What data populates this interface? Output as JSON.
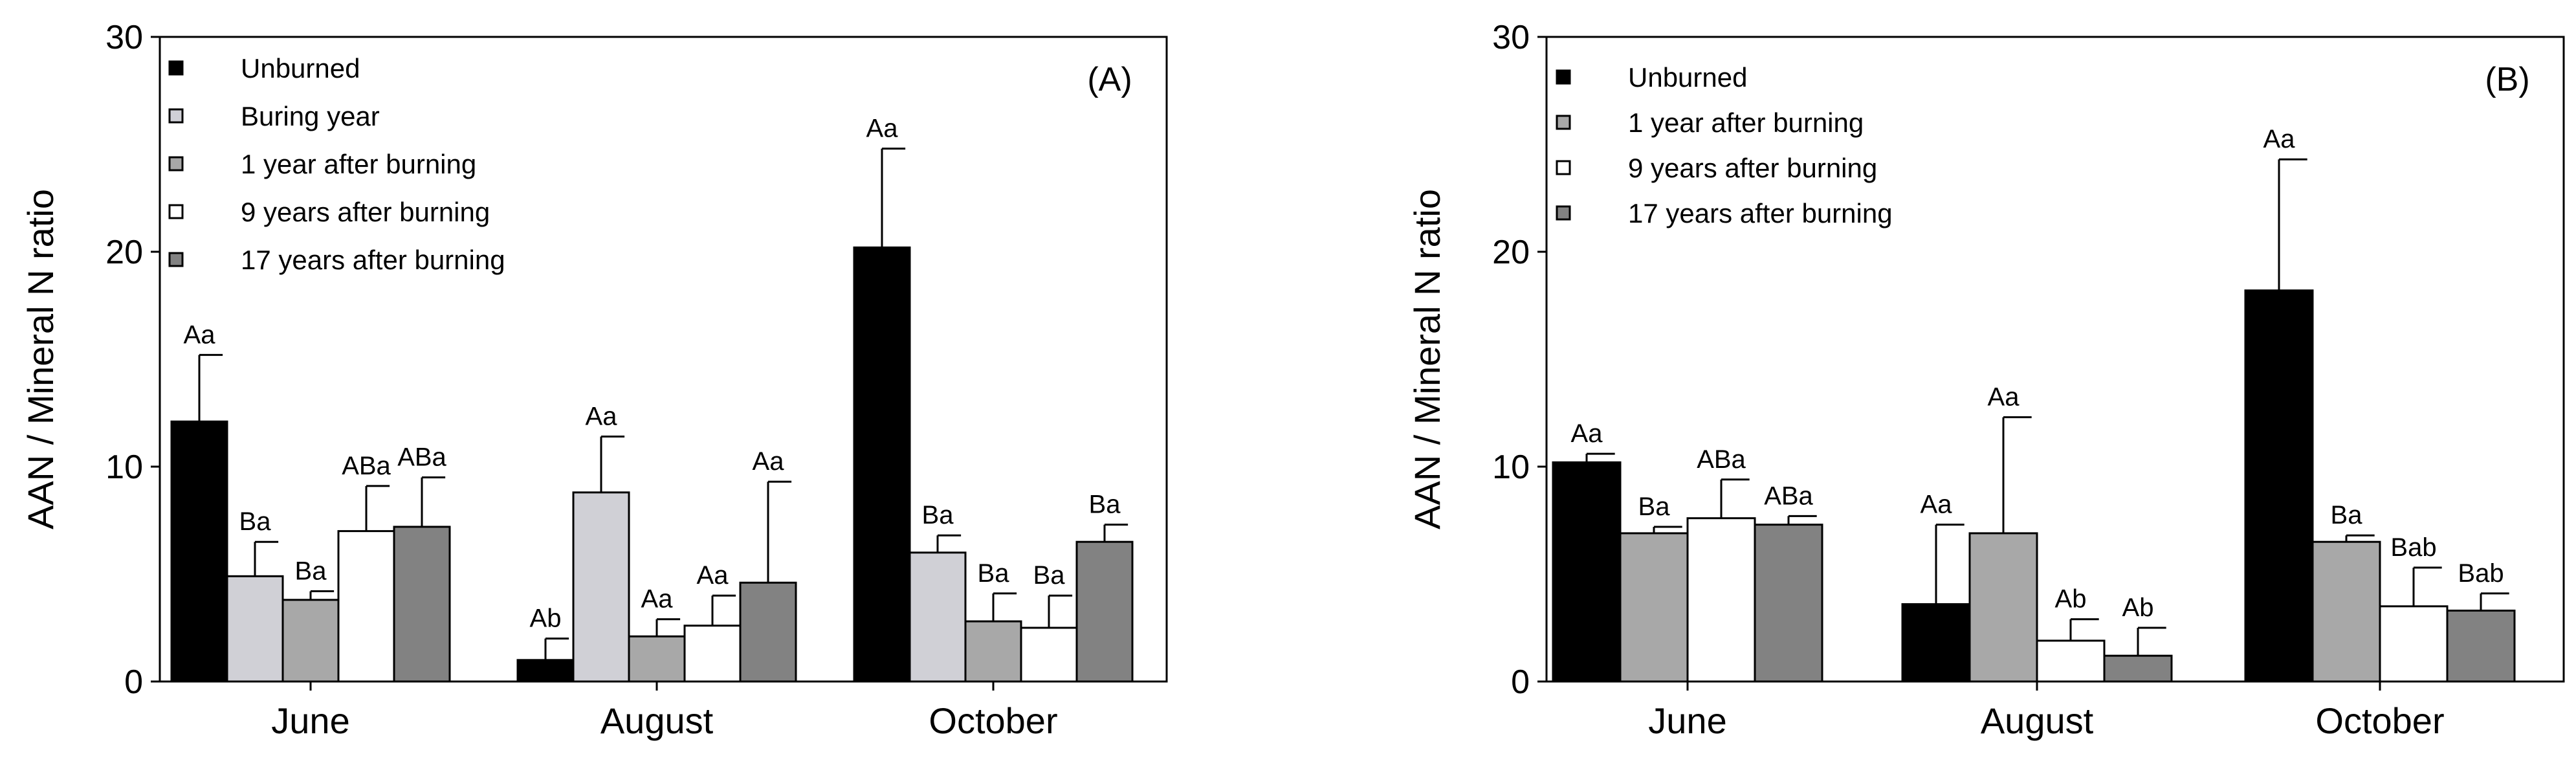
{
  "chart_data": [
    {
      "type": "bar",
      "panel_label": "(A)",
      "ylabel": "AAN / Mineral N ratio",
      "xlabel": "",
      "ylim": [
        0,
        30
      ],
      "yticks": [
        "0",
        "10",
        "20",
        "30"
      ],
      "categories": [
        "June",
        "August",
        "October"
      ],
      "legend_position": "top-left",
      "series": [
        {
          "name": "Unburned",
          "color": "#000000",
          "values": [
            12.1,
            1.0,
            20.2
          ],
          "errors": [
            3.1,
            1.0,
            4.6
          ],
          "labels": [
            "Aa",
            "Ab",
            "Aa"
          ]
        },
        {
          "name": "Buring year",
          "color": "#d0d0d6",
          "values": [
            4.9,
            8.8,
            6.0
          ],
          "errors": [
            1.6,
            2.6,
            0.8
          ],
          "labels": [
            "Ba",
            "Aa",
            "Ba"
          ]
        },
        {
          "name": "1 year after burning",
          "color": "#a8a8a8",
          "values": [
            3.8,
            2.1,
            2.8
          ],
          "errors": [
            0.4,
            0.8,
            1.3
          ],
          "labels": [
            "Ba",
            "Aa",
            "Ba"
          ]
        },
        {
          "name": "9 years after burning",
          "color": "#ffffff",
          "values": [
            7.0,
            2.6,
            2.5
          ],
          "errors": [
            2.1,
            1.4,
            1.5
          ],
          "labels": [
            "ABa",
            "Aa",
            "Ba"
          ]
        },
        {
          "name": "17 years after burning",
          "color": "#828282",
          "values": [
            7.2,
            4.6,
            6.5
          ],
          "errors": [
            2.3,
            4.7,
            0.8
          ],
          "labels": [
            "ABa",
            "Aa",
            "Ba"
          ]
        }
      ]
    },
    {
      "type": "bar",
      "panel_label": "(B)",
      "ylabel": "AAN / Mineral N ratio",
      "xlabel": "",
      "ylim": [
        0,
        30
      ],
      "yticks": [
        "0",
        "10",
        "20",
        "30"
      ],
      "categories": [
        "June",
        "August",
        "October"
      ],
      "legend_position": "top-left",
      "series": [
        {
          "name": "Unburned",
          "color": "#000000",
          "values": [
            10.2,
            3.6,
            18.2
          ],
          "errors": [
            0.4,
            3.7,
            6.1
          ],
          "labels": [
            "Aa",
            "Aa",
            "Aa"
          ]
        },
        {
          "name": "1 year after burning",
          "color": "#a8a8a8",
          "values": [
            6.9,
            6.9,
            6.5
          ],
          "errors": [
            0.3,
            5.4,
            0.3
          ],
          "labels": [
            "Ba",
            "Aa",
            "Ba"
          ]
        },
        {
          "name": "9 years after burning",
          "color": "#ffffff",
          "values": [
            7.6,
            1.9,
            3.5
          ],
          "errors": [
            1.8,
            1.0,
            1.8
          ],
          "labels": [
            "ABa",
            "Ab",
            "Bab"
          ]
        },
        {
          "name": "17 years after burning",
          "color": "#828282",
          "values": [
            7.3,
            1.2,
            3.3
          ],
          "errors": [
            0.4,
            1.3,
            0.8
          ],
          "labels": [
            "ABa",
            "Ab",
            "Bab"
          ]
        }
      ]
    }
  ]
}
